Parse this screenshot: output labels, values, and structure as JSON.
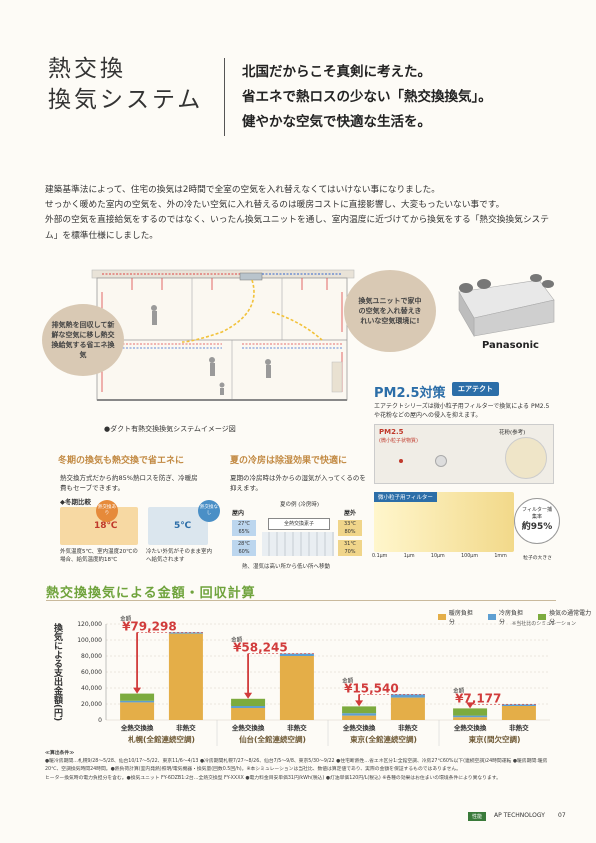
{
  "heading": {
    "line1": "熱交換",
    "line2": "換気システム"
  },
  "lead": [
    "北国だからこそ真剣に考えた。",
    "省エネで熱ロスの少ない「熱交換換気」。",
    "健やかな空気で快適な生活を。"
  ],
  "body": [
    "建築基準法によって、住宅の換気は2時間で全室の空気を入れ替えなくてはいけない事になりました。",
    "せっかく暖めた室内の空気を、外の冷たい空気に入れ替えるのは暖房コストに直接影響し、大変もったいない事です。",
    "外部の空気を直接給気をするのではなく、いったん換気ユニットを通し、室内温度に近づけてから換気をする「熱交換換気システム」を標準仕様にしました。"
  ],
  "diagram": {
    "bubble_left": "排気熱を回収して新鮮な空気に移し熱交換給気する省エネ換気",
    "bubble_right": "換気ユニットで家中の空気を入れ替えきれいな空気環境に!",
    "caption": "●ダクト有熱交換換気システムイメージ図",
    "brand": "Panasonic"
  },
  "winter": {
    "heading": "冬期の換気も熱交換で省エネに",
    "text": "熱交換方式だから約85%熱ロスを防ぎ、冷暖房費もセーブできます。",
    "subhead": "◆冬期比較",
    "tag_yes": "熱交換あり",
    "tag_no": "熱交換なし",
    "note_yes": "外気温度5℃、室内温度20℃の場合、給気温度約18℃",
    "note_no": "冷たい外気がそのまま室内へ給気されます",
    "temp_yes": "18℃",
    "temp_no": "5℃"
  },
  "summer": {
    "heading": "夏の冷房は除湿効果で快適に",
    "text": "夏期の冷房時は外からの湿気が入ってくるのを抑えます。",
    "example": "夏の例 (冷房時)",
    "indoor": "屋内",
    "outdoor": "屋外",
    "element": "全熱交換素子",
    "in1": "27℃ 65%",
    "in2": "28℃ 60%",
    "out1": "33℃ 80%",
    "out2": "31℃ 70%",
    "caption": "熱、湿気は高い所から低い所へ移動"
  },
  "pm": {
    "title": "PM2.5対策",
    "badge": "エアテクト",
    "text": "エアテクトシリーズは微小粒子用フィルターで換気による PM2.5や花粉などの屋内への侵入を抑えます。",
    "label_pm": "PM2.5",
    "label_pm_sub": "(微小粒子状物質)",
    "pollen": "花粉(参考)",
    "filter": "微小粒子用フィルター",
    "filter_rate_label": "フィルター捕集率",
    "filter_rate": "約95%",
    "scale": [
      "0.1μm",
      "1μm",
      "10μm",
      "100μm",
      "1mm",
      "粒子の大きさ"
    ]
  },
  "chart_section": {
    "title": "熱交換換気による金額・回収計算",
    "ylabel": "換気による支出金額(円)",
    "note": "※当社比のシミュレーション",
    "legend": [
      "暖房負担分",
      "冷房負担分",
      "換気の通常電力分"
    ]
  },
  "chart_data": {
    "type": "bar",
    "stacked": true,
    "ylim": [
      0,
      120000
    ],
    "yticks": [
      0,
      20000,
      40000,
      60000,
      80000,
      100000,
      120000
    ],
    "ytick_labels": [
      "0",
      "20,000",
      "40,000",
      "60,000",
      "80,000",
      "100,000",
      "120,000"
    ],
    "groups": [
      {
        "name": "札幌",
        "sub": "(全館連続空調)",
        "saving_label": "金額",
        "saving": "¥79,298",
        "bars": [
          {
            "label": "全熱交換換",
            "heat": 22000,
            "cool": 2000,
            "fan": 9000
          },
          {
            "label": "非熱交",
            "heat": 108000,
            "cool": 1500,
            "fan": 0
          }
        ]
      },
      {
        "name": "仙台",
        "sub": "(全館連続空調)",
        "saving_label": "金額",
        "saving": "¥58,245",
        "bars": [
          {
            "label": "全熱交換換",
            "heat": 15000,
            "cool": 2500,
            "fan": 9000
          },
          {
            "label": "非熱交",
            "heat": 80000,
            "cool": 3000,
            "fan": 0
          }
        ]
      },
      {
        "name": "東京",
        "sub": "(全館連続空調)",
        "saving_label": "金額",
        "saving": "¥15,540",
        "bars": [
          {
            "label": "全熱交換換",
            "heat": 5500,
            "cool": 3000,
            "fan": 8500
          },
          {
            "label": "非熱交",
            "heat": 28000,
            "cool": 4000,
            "fan": 0
          }
        ]
      },
      {
        "name": "東京",
        "sub": "(間欠空調)",
        "saving_label": "金額",
        "saving": "¥7,177",
        "bars": [
          {
            "label": "全熱交換換",
            "heat": 3500,
            "cool": 2000,
            "fan": 9000
          },
          {
            "label": "非熱交",
            "heat": 17500,
            "cool": 2000,
            "fan": 0
          }
        ]
      }
    ],
    "colors": {
      "heat": "#e4ae48",
      "cool": "#5e9fd2",
      "fan": "#7cab3e",
      "saving": "#d13b3b"
    }
  },
  "footnote": {
    "head": "≪算出条件≫",
    "text": "●暖冷房期間…札幌9/28〜5/28、仙台10/17〜5/22、東京11/6〜4/13 ●冷房期間札幌7/27〜8/26、仙台7/5〜9/8、東京5/30〜9/22 ●住宅断熱性…省エネ区分1:全館空調、冷房27℃60%以下(連続空調)24時間運転 ●暖房期間:暖房20℃、空調換気時間24時間。●熱負荷計算(室内発熱)照明/電気機器・換気量(回数0.5回/h)。※本シミュレーションは当社比、数値は算定値であり、実際の金額を保証するものではありません。",
    "text2": "ヒーター換気時の電力負担分を含む。●換気ユニット FY-6DZB1:2台…全熱交換型 FY-XXXX ●電力料金目安単価31円/kWh(税込) ●灯油単価120円/L(税込) ※各種の効果はお住まいの環境条件により異なります。"
  },
  "page": {
    "brand": "AP TECHNOLOGY",
    "number": "07",
    "label": "性能"
  }
}
